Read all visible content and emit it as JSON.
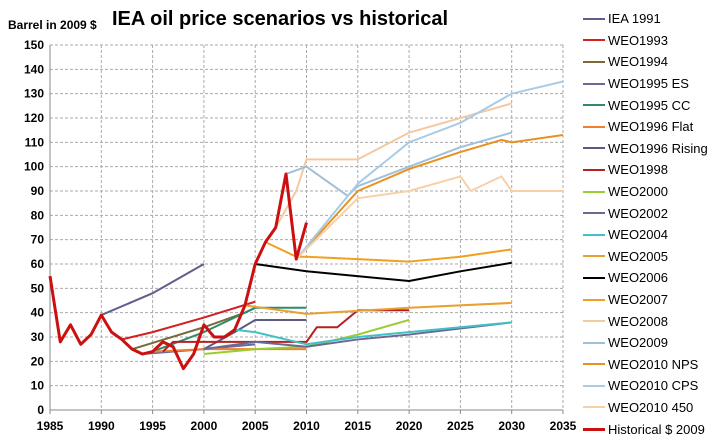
{
  "chart_data": {
    "type": "line",
    "title": "IEA oil price scenarios vs historical",
    "ylabel": "Barrel in 2009 $",
    "xlabel": "",
    "xlim": [
      1985,
      2035
    ],
    "ylim": [
      0,
      150
    ],
    "xticks": [
      1985,
      1990,
      1995,
      2000,
      2005,
      2010,
      2015,
      2020,
      2025,
      2030,
      2035
    ],
    "yticks": [
      0,
      10,
      20,
      30,
      40,
      50,
      60,
      70,
      80,
      90,
      100,
      110,
      120,
      130,
      140,
      150
    ],
    "grid": true,
    "legend": "right",
    "series": [
      {
        "name": "IEA 1991",
        "color": "#5f5f8f",
        "x": [
          1990,
          1995,
          2000
        ],
        "y": [
          39,
          48,
          60
        ]
      },
      {
        "name": "WEO1993",
        "color": "#d42020",
        "x": [
          1992,
          1995,
          2000,
          2005
        ],
        "y": [
          29,
          32,
          38,
          44.5
        ]
      },
      {
        "name": "WEO1994",
        "color": "#7a6a3a",
        "x": [
          1993,
          2000,
          2004,
          2005
        ],
        "y": [
          25,
          34,
          40,
          42
        ]
      },
      {
        "name": "WEO1995 ES",
        "color": "#6a6a9a",
        "x": [
          1994,
          2000,
          2005
        ],
        "y": [
          23,
          25,
          27
        ]
      },
      {
        "name": "WEO1995 CC",
        "color": "#2e8b6a",
        "x": [
          1995,
          2000,
          2005,
          2010
        ],
        "y": [
          24,
          32,
          42,
          42
        ]
      },
      {
        "name": "WEO1996 Flat",
        "color": "#f08030",
        "x": [
          1995,
          2000,
          2010
        ],
        "y": [
          24,
          25,
          25
        ]
      },
      {
        "name": "WEO1996 Rising",
        "color": "#5a5a85",
        "x": [
          2000,
          2003,
          2005,
          2010
        ],
        "y": [
          25,
          32,
          37,
          37
        ]
      },
      {
        "name": "WEO1998",
        "color": "#b82020",
        "x": [
          1996,
          1997,
          2000,
          2010,
          2011,
          2013,
          2015,
          2020
        ],
        "y": [
          24,
          28,
          28,
          28,
          34,
          34,
          41,
          41
        ]
      },
      {
        "name": "WEO2000",
        "color": "#9acd32",
        "x": [
          2000,
          2005,
          2010,
          2015,
          2020
        ],
        "y": [
          23,
          25,
          26,
          31,
          37
        ]
      },
      {
        "name": "WEO2002",
        "color": "#6a6a90",
        "x": [
          2000,
          2005,
          2010,
          2015,
          2020,
          2030
        ],
        "y": [
          25,
          28,
          26,
          29,
          31,
          36
        ]
      },
      {
        "name": "WEO2004",
        "color": "#40c0c8",
        "x": [
          2003,
          2005,
          2010,
          2015,
          2020,
          2030
        ],
        "y": [
          33,
          32,
          27,
          30,
          32,
          36
        ]
      },
      {
        "name": "WEO2005",
        "color": "#e8a030",
        "x": [
          2004,
          2010,
          2020,
          2030
        ],
        "y": [
          43,
          39.5,
          42,
          44
        ]
      },
      {
        "name": "WEO2006",
        "color": "#000000",
        "x": [
          2005,
          2010,
          2020,
          2025,
          2030
        ],
        "y": [
          60,
          57,
          53,
          57,
          60.5
        ]
      },
      {
        "name": "WEO2007",
        "color": "#f0a020",
        "x": [
          2006,
          2009,
          2010,
          2020,
          2025,
          2030
        ],
        "y": [
          69,
          63,
          63,
          61,
          63,
          66
        ]
      },
      {
        "name": "WEO2008",
        "color": "#f5c9a0",
        "x": [
          2007,
          2009,
          2010,
          2015,
          2020,
          2030
        ],
        "y": [
          75,
          90,
          103,
          103,
          114,
          126
        ]
      },
      {
        "name": "WEO2009",
        "color": "#a0c0d8",
        "x": [
          2008,
          2010,
          2014,
          2015,
          2020,
          2025,
          2030
        ],
        "y": [
          97,
          100,
          88,
          92,
          100,
          108,
          114
        ]
      },
      {
        "name": "WEO2010 NPS",
        "color": "#e89020",
        "x": [
          2009,
          2015,
          2020,
          2025,
          2029,
          2030,
          2035
        ],
        "y": [
          62,
          90,
          99,
          106,
          111,
          110,
          113
        ]
      },
      {
        "name": "WEO2010 CPS",
        "color": "#a8cce8",
        "x": [
          2009,
          2015,
          2020,
          2025,
          2030,
          2035
        ],
        "y": [
          62,
          93,
          110,
          118,
          130,
          135
        ]
      },
      {
        "name": "WEO2010 450",
        "color": "#f8d0a8",
        "x": [
          2009,
          2015,
          2020,
          2025,
          2026,
          2029,
          2030,
          2035
        ],
        "y": [
          62,
          87,
          90,
          96,
          90,
          96,
          90,
          90
        ]
      },
      {
        "name": "Historical $ 2009",
        "color": "#cc1010",
        "width": 3,
        "x": [
          1985,
          1986,
          1987,
          1988,
          1989,
          1990,
          1991,
          1992,
          1993,
          1994,
          1995,
          1996,
          1997,
          1998,
          1999,
          2000,
          2001,
          2002,
          2003,
          2004,
          2005,
          2006,
          2007,
          2008,
          2009,
          2010
        ],
        "y": [
          55,
          28,
          35,
          27,
          31,
          39,
          32,
          29,
          25,
          23,
          24,
          28,
          26,
          17,
          23,
          35,
          30,
          30,
          33,
          43,
          60,
          69,
          75,
          97,
          62,
          77
        ]
      }
    ]
  }
}
